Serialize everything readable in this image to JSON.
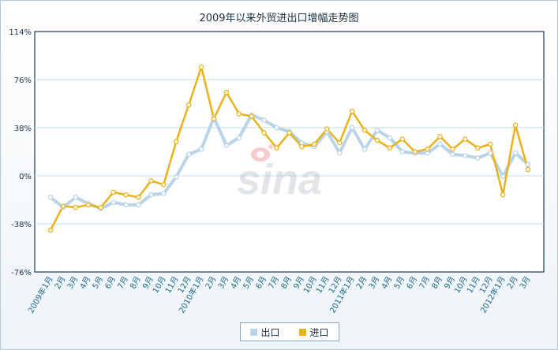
{
  "chart_data": {
    "type": "line",
    "title": "2009年以来外贸进出口增幅走势图",
    "y_ticks": [
      "114%",
      "76%",
      "38%",
      "0%",
      "-38%",
      "-76%"
    ],
    "ylim": [
      -76,
      114
    ],
    "grid": true,
    "legend_position": "bottom-center",
    "categories": [
      "2009年1月",
      "2月",
      "3月",
      "4月",
      "5月",
      "6月",
      "7月",
      "8月",
      "9月",
      "10月",
      "11月",
      "12月",
      "2010年1月",
      "2月",
      "3月",
      "4月",
      "5月",
      "6月",
      "7月",
      "8月",
      "9月",
      "10月",
      "11月",
      "12月",
      "2011年1月",
      "2月",
      "3月",
      "4月",
      "5月",
      "6月",
      "7月",
      "8月",
      "9月",
      "10月",
      "11月",
      "12月",
      "2012年1月",
      "2月",
      "3月"
    ],
    "series": [
      {
        "name": "出口",
        "color": "#b9d3e8",
        "values": [
          -17,
          -25,
          -17,
          -22,
          -26,
          -21,
          -23,
          -23,
          -15,
          -14,
          -1,
          17,
          21,
          46,
          24,
          30,
          48,
          44,
          38,
          35,
          26,
          23,
          35,
          18,
          38,
          21,
          36,
          30,
          19,
          18,
          18,
          25,
          17,
          16,
          14,
          18,
          -0.5,
          18,
          9
        ]
      },
      {
        "name": "进口",
        "color": "#e8b218",
        "values": [
          -43,
          -24,
          -25,
          -23,
          -25,
          -13,
          -15,
          -17,
          -4,
          -7,
          27,
          56,
          86,
          45,
          66,
          49,
          47,
          34,
          22,
          34,
          23,
          25,
          37,
          26,
          51,
          36,
          28,
          22,
          29,
          19,
          21,
          31,
          21,
          29,
          22,
          25,
          -15,
          40,
          5
        ]
      }
    ]
  },
  "watermark": "sina",
  "legend": {
    "export_label": "出口",
    "import_label": "进口"
  }
}
